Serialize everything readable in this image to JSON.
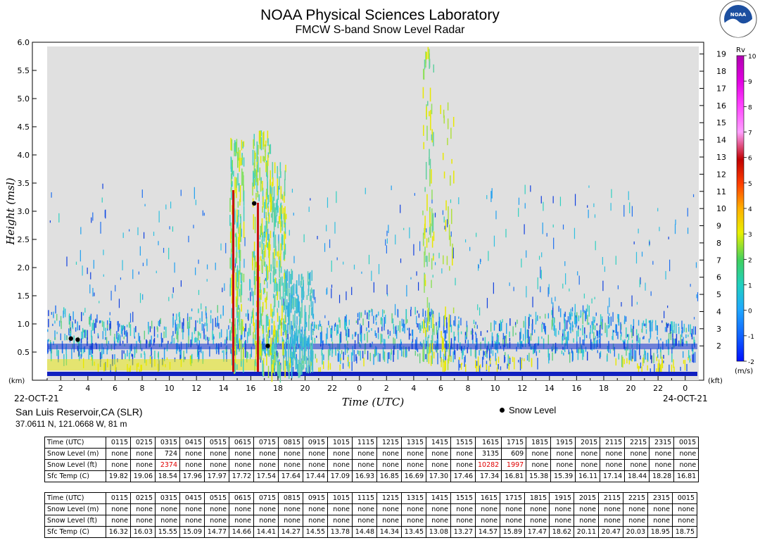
{
  "header": {
    "title": "NOAA Physical Sciences Laboratory",
    "subtitle": "FMCW S-band Snow Level Radar",
    "logo_text": "NOAA"
  },
  "chart_data": {
    "type": "heatmap",
    "ylabel": "Height (msl)",
    "xlabel": "Time (UTC)",
    "y_unit": "(km)",
    "y2_unit": "(kft)",
    "ylim": [
      0.0,
      6.0
    ],
    "yticks": [
      "0.5",
      "1.0",
      "1.5",
      "2.0",
      "2.5",
      "3.0",
      "3.5",
      "4.0",
      "4.5",
      "5.0",
      "5.5",
      "6.0"
    ],
    "y2ticks": [
      "2",
      "3",
      "4",
      "5",
      "6",
      "7",
      "8",
      "9",
      "10",
      "11",
      "12",
      "13",
      "14",
      "15",
      "16",
      "17",
      "18",
      "19"
    ],
    "xticks": [
      "2",
      "4",
      "6",
      "8",
      "10",
      "12",
      "14",
      "16",
      "18",
      "20",
      "22",
      "0",
      "2",
      "4",
      "6",
      "8",
      "10",
      "12",
      "14",
      "16",
      "18",
      "20",
      "22",
      "0"
    ],
    "start_date": "22-OCT-21",
    "end_date": "24-OCT-21",
    "colorbar": {
      "label": "Rv",
      "unit": "(m/s)",
      "ticks": [
        "-2",
        "-1",
        "0",
        "1",
        "2",
        "3",
        "4",
        "5",
        "6",
        "7",
        "8",
        "9",
        "10"
      ]
    },
    "snow_level_points": [
      {
        "time": "02:45",
        "km": 0.74
      },
      {
        "time": "03:15",
        "km": 0.72
      },
      {
        "time": "16:15",
        "km": 3.14
      },
      {
        "time": "17:15",
        "km": 0.61
      }
    ],
    "legend": {
      "snow_level": "Snow Level"
    }
  },
  "station": {
    "name": "San Luis Reservoir,CA (SLR)",
    "coords": "37.0611 N, 121.0668 W, 81 m"
  },
  "tables": [
    {
      "times": [
        "0115",
        "0215",
        "0315",
        "0415",
        "0515",
        "0615",
        "0715",
        "0815",
        "0915",
        "1015",
        "1115",
        "1215",
        "1315",
        "1415",
        "1515",
        "1615",
        "1715",
        "1815",
        "1915",
        "2015",
        "2115",
        "2215",
        "2315",
        "0015"
      ],
      "rows": [
        {
          "label": "Snow Level (m)",
          "values": [
            "none",
            "none",
            "724",
            "none",
            "none",
            "none",
            "none",
            "none",
            "none",
            "none",
            "none",
            "none",
            "none",
            "none",
            "none",
            "3135",
            "609",
            "none",
            "none",
            "none",
            "none",
            "none",
            "none",
            "none"
          ]
        },
        {
          "label": "Snow Level (ft)",
          "values": [
            "none",
            "none",
            "2374",
            "none",
            "none",
            "none",
            "none",
            "none",
            "none",
            "none",
            "none",
            "none",
            "none",
            "none",
            "none",
            "10282",
            "1997",
            "none",
            "none",
            "none",
            "none",
            "none",
            "none",
            "none"
          ]
        },
        {
          "label": "Sfc Temp (C)",
          "values": [
            "19.82",
            "19.06",
            "18.54",
            "17.96",
            "17.97",
            "17.72",
            "17.54",
            "17.64",
            "17.44",
            "17.09",
            "16.93",
            "16.85",
            "16.69",
            "17.30",
            "17.46",
            "17.34",
            "16.81",
            "15.38",
            "15.39",
            "16.11",
            "17.14",
            "18.44",
            "18.28",
            "16.81"
          ]
        }
      ]
    },
    {
      "times": [
        "0115",
        "0215",
        "0315",
        "0415",
        "0515",
        "0615",
        "0715",
        "0815",
        "0915",
        "1015",
        "1115",
        "1215",
        "1315",
        "1415",
        "1515",
        "1615",
        "1715",
        "1815",
        "1915",
        "2015",
        "2115",
        "2215",
        "2315",
        "0015"
      ],
      "rows": [
        {
          "label": "Snow Level (m)",
          "values": [
            "none",
            "none",
            "none",
            "none",
            "none",
            "none",
            "none",
            "none",
            "none",
            "none",
            "none",
            "none",
            "none",
            "none",
            "none",
            "none",
            "none",
            "none",
            "none",
            "none",
            "none",
            "none",
            "none",
            "none"
          ]
        },
        {
          "label": "Snow Level (ft)",
          "values": [
            "none",
            "none",
            "none",
            "none",
            "none",
            "none",
            "none",
            "none",
            "none",
            "none",
            "none",
            "none",
            "none",
            "none",
            "none",
            "none",
            "none",
            "none",
            "none",
            "none",
            "none",
            "none",
            "none",
            "none"
          ]
        },
        {
          "label": "Sfc Temp (C)",
          "values": [
            "16.32",
            "16.03",
            "15.55",
            "15.09",
            "14.77",
            "14.66",
            "14.41",
            "14.27",
            "14.55",
            "13.78",
            "14.48",
            "14.34",
            "13.45",
            "13.08",
            "13.27",
            "14.57",
            "15.89",
            "17.47",
            "18.62",
            "20.11",
            "20.47",
            "20.03",
            "18.95",
            "18.75"
          ]
        }
      ]
    }
  ],
  "table_time_label": "Time (UTC)",
  "colors": {
    "background": "#e0e0e0",
    "low_velocity": "#1030e0",
    "mid_velocity": "#20c0d0",
    "high_velocity": "#e8e800",
    "red_band": "#c81010",
    "highlight_text": "#e00000"
  }
}
